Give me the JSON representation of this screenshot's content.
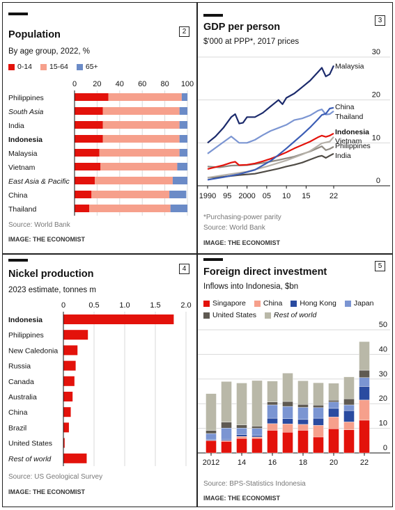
{
  "panels": [
    {
      "number": "2",
      "title": "Population",
      "subtitle": "By age group, 2022, %",
      "source": "Source: World Bank",
      "credit": "IMAGE: THE ECONOMIST"
    },
    {
      "number": "3",
      "title": "GDP per person",
      "subtitle": "$'000 at PPP*, 2017 prices",
      "footnote": "*Purchasing-power parity",
      "source": "Source: World Bank",
      "credit": "IMAGE: THE ECONOMIST"
    },
    {
      "number": "4",
      "title": "Nickel production",
      "subtitle": "2023 estimate, tonnes m",
      "source": "Source: US Geological Survey",
      "credit": "IMAGE: THE ECONOMIST"
    },
    {
      "number": "5",
      "title": "Foreign direct investment",
      "subtitle": "Inflows into Indonesia, $bn",
      "source": "Source: BPS-Statistics Indonesia",
      "credit": "IMAGE: THE ECONOMIST"
    }
  ],
  "chart_data": [
    {
      "type": "bar",
      "stacked": true,
      "orientation": "horizontal",
      "title": "Population",
      "subtitle": "By age group, 2022, %",
      "xlim": [
        0,
        100
      ],
      "xticks": [
        "0",
        "20",
        "40",
        "60",
        "80",
        "100"
      ],
      "categories": [
        "Philippines",
        "South Asia",
        "India",
        "Indonesia",
        "Malaysia",
        "Vietnam",
        "East Asia & Pacific",
        "China",
        "Thailand"
      ],
      "category_styles": [
        "normal",
        "italic",
        "normal",
        "bold",
        "normal",
        "normal",
        "italic",
        "normal",
        "normal"
      ],
      "series": [
        {
          "name": "0-14",
          "color": "#e3120b",
          "values": [
            30,
            25,
            25,
            25,
            22,
            23,
            18,
            15,
            13
          ]
        },
        {
          "name": "15-64",
          "color": "#f6a08c",
          "values": [
            65,
            68,
            68,
            68,
            71,
            68,
            69,
            69,
            72
          ]
        },
        {
          "name": "65+",
          "color": "#6b8bc7",
          "values": [
            5,
            7,
            7,
            7,
            7,
            9,
            13,
            15,
            15
          ]
        }
      ]
    },
    {
      "type": "line",
      "title": "GDP per person",
      "subtitle": "$'000 at PPP*, 2017 prices",
      "ylim": [
        0,
        30
      ],
      "yticks": [
        "0",
        "10",
        "20",
        "30"
      ],
      "xticks": [
        "1990",
        "95",
        "2000",
        "05",
        "10",
        "15",
        "22"
      ],
      "series": [
        {
          "name": "Malaysia",
          "color": "#1b2a6b",
          "x": [
            1990,
            1992,
            1994,
            1996,
            1997,
            1998,
            1999,
            2000,
            2002,
            2004,
            2006,
            2008,
            2009,
            2010,
            2012,
            2014,
            2016,
            2018,
            2019,
            2020,
            2021,
            2022
          ],
          "y": [
            10,
            11.5,
            13.5,
            16,
            16.7,
            14.5,
            14.7,
            16,
            16,
            17,
            18.5,
            20,
            19,
            20.5,
            21.5,
            23,
            24.5,
            26.5,
            27.5,
            25.5,
            26,
            28
          ]
        },
        {
          "name": "China",
          "color": "#3b5db5",
          "x": [
            1990,
            1994,
            1998,
            2002,
            2006,
            2008,
            2010,
            2012,
            2014,
            2016,
            2018,
            2019,
            2020,
            2021,
            2022
          ],
          "y": [
            1.4,
            2,
            2.7,
            3.7,
            5.8,
            7.2,
            8.7,
            10.3,
            11.9,
            13.6,
            15.5,
            16.5,
            16.8,
            18,
            18.2
          ]
        },
        {
          "name": "Thailand",
          "color": "#7b95d2",
          "x": [
            1990,
            1993,
            1996,
            1998,
            2000,
            2002,
            2004,
            2006,
            2008,
            2010,
            2012,
            2014,
            2016,
            2018,
            2019,
            2020,
            2021,
            2022
          ],
          "y": [
            7.5,
            9.5,
            11.5,
            10,
            10,
            10.7,
            11.8,
            12.8,
            13.5,
            14.2,
            15.3,
            15.7,
            16.4,
            17.5,
            17.8,
            16.6,
            16.7,
            17.4
          ]
        },
        {
          "name": "Indonesia",
          "color": "#e3120b",
          "x": [
            1990,
            1994,
            1996,
            1997,
            1998,
            2000,
            2002,
            2004,
            2006,
            2008,
            2010,
            2012,
            2014,
            2016,
            2018,
            2019,
            2020,
            2021,
            2022
          ],
          "y": [
            3.9,
            4.8,
            5.4,
            5.6,
            4.8,
            4.9,
            5.2,
            5.7,
            6.3,
            7,
            7.8,
            8.7,
            9.5,
            10.3,
            11.3,
            11.7,
            11.4,
            11.7,
            12.2
          ]
        },
        {
          "name": "Vietnam",
          "color": "#b5b0a8",
          "x": [
            1990,
            1995,
            2000,
            2005,
            2010,
            2014,
            2016,
            2018,
            2019,
            2020,
            2021,
            2022
          ],
          "y": [
            1.9,
            2.6,
            3.3,
            4.5,
            5.9,
            7.3,
            8.1,
            9.3,
            9.9,
            10.1,
            10.3,
            11.4
          ]
        },
        {
          "name": "Philippines",
          "color": "#8f8a82",
          "x": [
            1990,
            1993,
            1996,
            2000,
            2004,
            2008,
            2012,
            2016,
            2018,
            2019,
            2020,
            2021,
            2022
          ],
          "y": [
            4.5,
            4.3,
            4.7,
            4.8,
            5.3,
            6,
            6.8,
            8,
            8.8,
            9.2,
            8.3,
            8.6,
            9.1
          ]
        },
        {
          "name": "India",
          "color": "#4f4b45",
          "x": [
            1990,
            1994,
            1998,
            2002,
            2006,
            2008,
            2010,
            2012,
            2014,
            2016,
            2018,
            2019,
            2020,
            2021,
            2022
          ],
          "y": [
            1.9,
            2.1,
            2.5,
            2.8,
            3.6,
            4,
            4.5,
            4.9,
            5.4,
            6.1,
            6.8,
            7,
            6.5,
            7,
            7.5
          ]
        }
      ]
    },
    {
      "type": "bar",
      "orientation": "horizontal",
      "title": "Nickel production",
      "subtitle": "2023 estimate, tonnes m",
      "xlim": [
        0,
        2
      ],
      "xticks": [
        "0",
        "0.5",
        "1.0",
        "1.5",
        "2.0"
      ],
      "categories": [
        "Indonesia",
        "Philippines",
        "New Caledonia",
        "Russia",
        "Canada",
        "Australia",
        "China",
        "Brazil",
        "United States",
        "Rest of world"
      ],
      "category_styles": [
        "bold",
        "normal",
        "normal",
        "normal",
        "normal",
        "normal",
        "normal",
        "normal",
        "normal",
        "italic"
      ],
      "values": [
        1.8,
        0.4,
        0.23,
        0.2,
        0.18,
        0.15,
        0.12,
        0.09,
        0.02,
        0.38
      ],
      "color": "#e3120b"
    },
    {
      "type": "bar",
      "stacked": true,
      "title": "Foreign direct investment",
      "subtitle": "Inflows into Indonesia, $bn",
      "ylim": [
        0,
        50
      ],
      "yticks": [
        "0",
        "10",
        "20",
        "30",
        "40",
        "50"
      ],
      "xticks": [
        "2012",
        "14",
        "16",
        "18",
        "20",
        "22"
      ],
      "categories": [
        "2012",
        "2013",
        "2014",
        "2015",
        "2016",
        "2017",
        "2018",
        "2019",
        "2020",
        "2021",
        "2022"
      ],
      "series": [
        {
          "name": "Singapore",
          "color": "#e3120b",
          "values": [
            5,
            4.7,
            5.9,
            5.9,
            9.2,
            8.4,
            9.2,
            6.5,
            9.8,
            9.4,
            13.3
          ]
        },
        {
          "name": "China",
          "color": "#f6a08c",
          "values": [
            0.1,
            0.3,
            0.8,
            0.6,
            2.7,
            3.4,
            2.4,
            4.7,
            4.8,
            3.2,
            8.2
          ]
        },
        {
          "name": "Hong Kong",
          "color": "#2a4ba0",
          "values": [
            0.3,
            0.4,
            0.7,
            0.6,
            2.2,
            2.1,
            2.0,
            2.9,
            3.5,
            4.6,
            5.5
          ]
        },
        {
          "name": "Japan",
          "color": "#7b95d2",
          "values": [
            2.5,
            4.7,
            2.7,
            2.9,
            5.4,
            5.0,
            4.9,
            4.3,
            2.6,
            2.3,
            3.6
          ]
        },
        {
          "name": "United States",
          "color": "#5f5a52",
          "values": [
            1.2,
            2.4,
            1.3,
            0.9,
            1.2,
            2.0,
            1.2,
            1.0,
            0.7,
            2.5,
            3.0
          ]
        },
        {
          "name": "Rest of world",
          "color": "#b9b8a8",
          "values": [
            15,
            16.5,
            17,
            18.5,
            8.5,
            11.5,
            9.6,
            9.1,
            6.9,
            8.9,
            11.6
          ]
        }
      ]
    }
  ]
}
